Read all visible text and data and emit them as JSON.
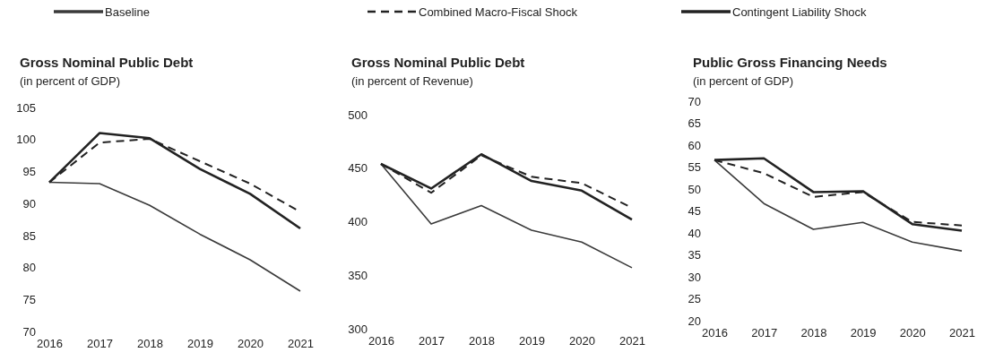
{
  "chart_data": [
    {
      "type": "line",
      "title": "Gross Nominal Public Debt",
      "subtitle": "(in percent of GDP)",
      "categories": [
        "2016",
        "2017",
        "2018",
        "2019",
        "2020",
        "2021"
      ],
      "ylim": [
        70,
        105
      ],
      "yticks": [
        70,
        75,
        80,
        85,
        90,
        95,
        100,
        105
      ],
      "legend": "top",
      "series": [
        {
          "name": "Baseline",
          "color": "#3a3a3a",
          "values": [
            93.3,
            93.1,
            89.7,
            85.2,
            81.2,
            76.3
          ]
        },
        {
          "name": "Combined Macro-Fiscal Shock",
          "color": "#222222",
          "line_style": "dashed",
          "values": [
            93.3,
            99.5,
            100.1,
            96.6,
            93.1,
            88.7
          ]
        },
        {
          "name": "Contingent Liability Shock",
          "color": "#222222",
          "values": [
            93.3,
            101.0,
            100.2,
            95.4,
            91.5,
            86.1
          ]
        }
      ]
    },
    {
      "type": "line",
      "title": "Gross Nominal Public Debt",
      "subtitle": "(in percent of Revenue)",
      "categories": [
        "2016",
        "2017",
        "2018",
        "2019",
        "2020",
        "2021"
      ],
      "ylim": [
        300,
        500
      ],
      "yticks": [
        300,
        350,
        400,
        450,
        500
      ],
      "series": [
        {
          "color": "#3a3a3a",
          "values": [
            454,
            398,
            415,
            392,
            381,
            357
          ]
        },
        {
          "color": "#222222",
          "line_style": "dashed",
          "values": [
            454,
            427,
            462,
            442,
            436,
            413
          ]
        },
        {
          "color": "#222222",
          "values": [
            454,
            431,
            463,
            438,
            429,
            402
          ]
        }
      ]
    },
    {
      "type": "line",
      "title": "Public Gross Financing Needs",
      "subtitle": "(in percent of GDP)",
      "categories": [
        "2016",
        "2017",
        "2018",
        "2019",
        "2020",
        "2021"
      ],
      "ylim": [
        20,
        70
      ],
      "yticks": [
        20,
        25,
        30,
        35,
        40,
        45,
        50,
        55,
        60,
        65,
        70
      ],
      "series": [
        {
          "color": "#3a3a3a",
          "values": [
            56.6,
            46.7,
            40.8,
            42.4,
            37.9,
            35.9
          ]
        },
        {
          "color": "#222222",
          "line_style": "dashed",
          "values": [
            56.6,
            53.6,
            48.2,
            49.3,
            42.5,
            41.7
          ]
        },
        {
          "color": "#222222",
          "values": [
            56.6,
            57.0,
            49.3,
            49.5,
            42.0,
            40.5
          ]
        }
      ]
    }
  ]
}
